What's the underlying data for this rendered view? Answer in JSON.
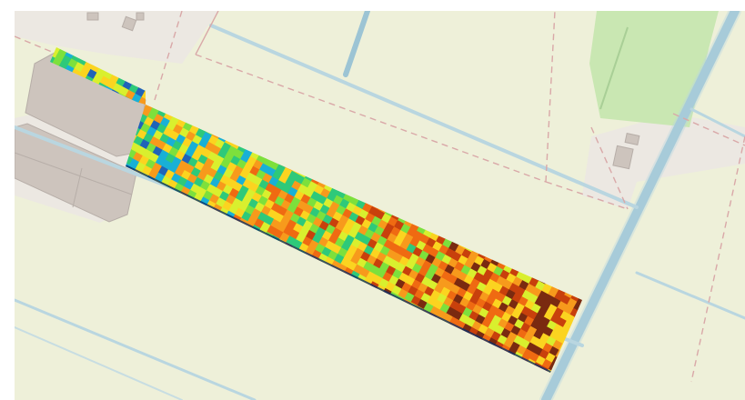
{
  "map": {
    "basemap_style": "light-topographic",
    "colors": {
      "farmland": "#eef0d9",
      "meadow": "#d9ecbf",
      "grass": "#c9e7b2",
      "water": "#9cc4d4",
      "water_edge": "#b9d6e0",
      "building": "#cdc4bd",
      "building_edge": "#b7aea8",
      "boundary": "#d9a8a8",
      "yard": "#ece8e2"
    },
    "overlay": {
      "type": "raster-heatmap",
      "palette": [
        "#0b2f6b",
        "#1f63b8",
        "#19b0d6",
        "#2ec97a",
        "#7de03c",
        "#d9ef2e",
        "#fbd420",
        "#f79a1c",
        "#ef6a12",
        "#c8400c",
        "#7a2a10"
      ]
    },
    "icons": [
      "building-icon",
      "field-boundary-icon",
      "water-canal-icon"
    ]
  }
}
